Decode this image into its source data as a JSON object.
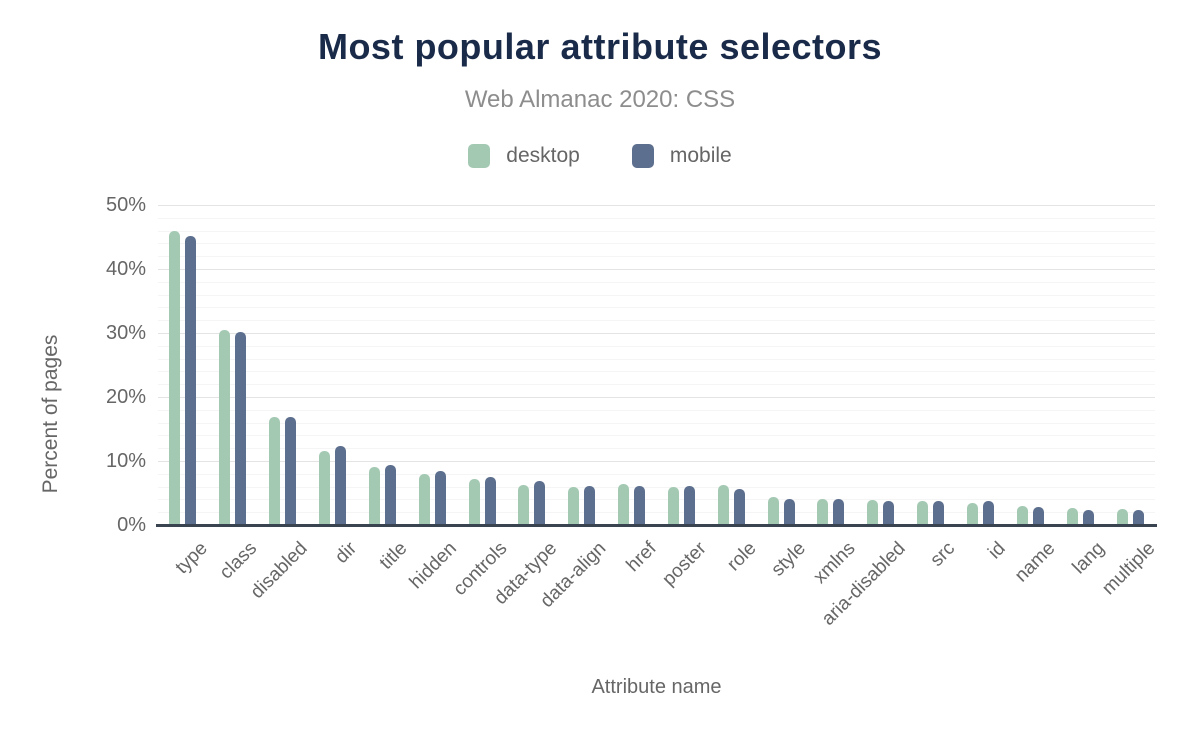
{
  "header": {
    "title": "Most popular attribute selectors",
    "subtitle": "Web Almanac 2020: CSS"
  },
  "legend": {
    "items": [
      {
        "label": "desktop",
        "color": "#a4c9b3"
      },
      {
        "label": "mobile",
        "color": "#5d6f8e"
      }
    ]
  },
  "chart_data": {
    "type": "bar",
    "title": "Most popular attribute selectors",
    "subtitle": "Web Almanac 2020: CSS",
    "xlabel": "Attribute name",
    "ylabel": "Percent of pages",
    "ylim": [
      0,
      50
    ],
    "ytick_step": 10,
    "minor_gridline_step": 2,
    "yticks": [
      "0%",
      "10%",
      "20%",
      "30%",
      "40%",
      "50%"
    ],
    "grid": true,
    "legend_position": "top",
    "categories": [
      "type",
      "class",
      "disabled",
      "dir",
      "title",
      "hidden",
      "controls",
      "data-type",
      "data-align",
      "href",
      "poster",
      "role",
      "style",
      "xmlns",
      "aria-disabled",
      "src",
      "id",
      "name",
      "lang",
      "multiple"
    ],
    "series": [
      {
        "name": "desktop",
        "color": "#a4c9b3",
        "values": [
          45.9,
          30.5,
          16.8,
          11.5,
          9.0,
          8.0,
          7.2,
          6.2,
          6.0,
          6.4,
          5.9,
          6.2,
          4.4,
          4.1,
          3.9,
          3.8,
          3.5,
          2.9,
          2.6,
          2.5
        ]
      },
      {
        "name": "mobile",
        "color": "#5d6f8e",
        "values": [
          45.2,
          30.2,
          16.9,
          12.4,
          9.3,
          8.4,
          7.5,
          6.8,
          6.1,
          6.1,
          6.1,
          5.6,
          4.1,
          4.0,
          3.7,
          3.8,
          3.8,
          2.8,
          2.4,
          2.4
        ]
      }
    ]
  },
  "colors": {
    "title_text": "#1a2b4a",
    "subtitle_text": "#8d8d8d",
    "axis_text": "#666666",
    "axis_line": "#3a4350",
    "grid_major": "#e4e4e4",
    "grid_minor": "#f5f5f5",
    "background": "#ffffff"
  }
}
